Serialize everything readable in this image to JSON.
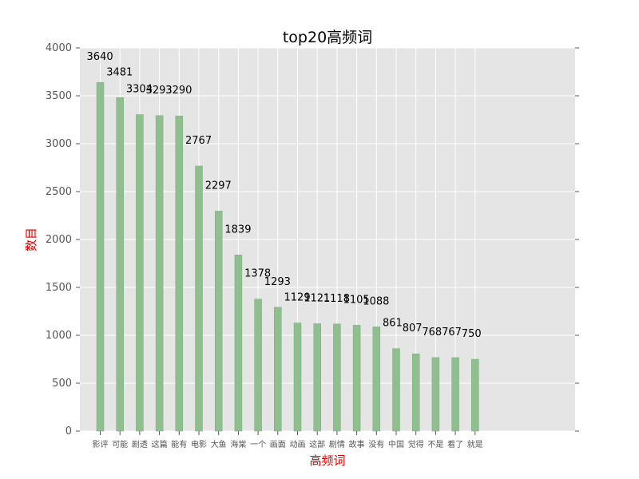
{
  "chart_data": {
    "type": "bar",
    "title": "top20高频词",
    "xlabel": "高频词",
    "ylabel": "数目",
    "categories": [
      "影评",
      "可能",
      "剧透",
      "这篇",
      "能有",
      "电影",
      "大鱼",
      "海棠",
      "一个",
      "画面",
      "动画",
      "这部",
      "剧情",
      "故事",
      "没有",
      "中国",
      "觉得",
      "不是",
      "看了",
      "就是"
    ],
    "values": [
      3640,
      3481,
      3304,
      3293,
      3290,
      2767,
      2297,
      1839,
      1378,
      1293,
      1129,
      1121,
      1118,
      1105,
      1088,
      861,
      807,
      768,
      767,
      750
    ],
    "data_labels": [
      "3640",
      "3481",
      "3304",
      "3293",
      "3290",
      "2767",
      "2297",
      "1839",
      "1378",
      "1293",
      "1129",
      "1121",
      "1118",
      "1105",
      "1088",
      "861",
      "807",
      "768",
      "767",
      "750"
    ],
    "yticks": [
      0,
      500,
      1000,
      1500,
      2000,
      2500,
      3000,
      3500,
      4000
    ],
    "ytick_labels": [
      "0",
      "500",
      "1000",
      "1500",
      "2000",
      "2500",
      "3000",
      "3500",
      "4000"
    ],
    "ylim": [
      0,
      4000
    ],
    "grid": true,
    "colors": {
      "bar": "#8fbf8f",
      "bar_edge": "#7aae7a",
      "plot_bg": "#e5e5e5",
      "grid": "#ffffff",
      "axis_label": "#e00000"
    }
  }
}
